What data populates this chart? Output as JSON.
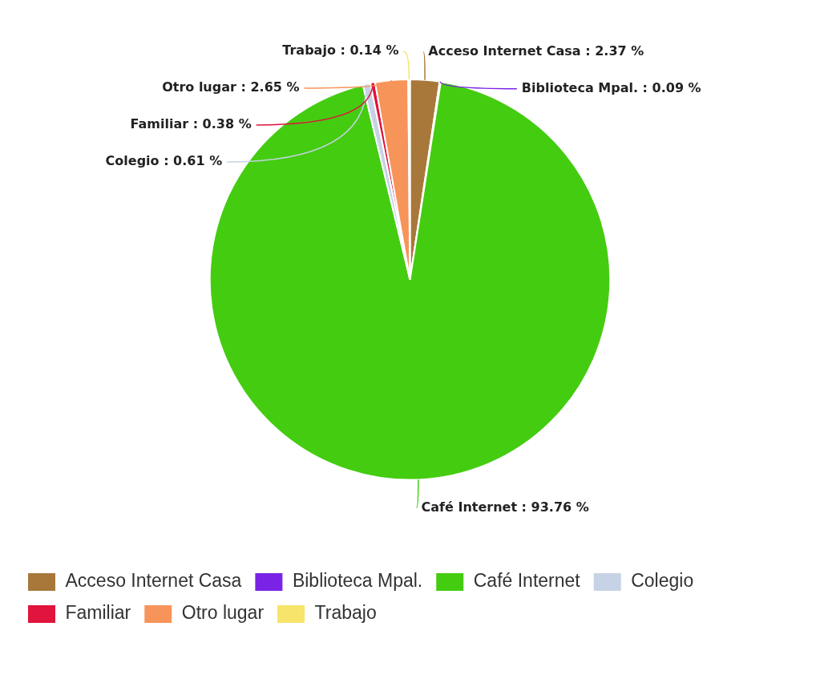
{
  "chart_data": {
    "type": "pie",
    "categories": [
      "Acceso Internet Casa",
      "Biblioteca Mpal.",
      "Café Internet",
      "Colegio",
      "Familiar",
      "Otro lugar",
      "Trabajo"
    ],
    "values": [
      2.37,
      0.09,
      93.76,
      0.61,
      0.38,
      2.65,
      0.14
    ],
    "colors": [
      "#a8773a",
      "#7a22e6",
      "#44cc11",
      "#c6d3e6",
      "#e0143c",
      "#f7945a",
      "#f7e46a"
    ],
    "value_labels": [
      "Acceso Internet Casa : 2.37 %",
      "Biblioteca Mpal. : 0.09 %",
      "Café Internet : 93.76 %",
      "Colegio : 0.61 %",
      "Familiar : 0.38 %",
      "Otro lugar : 2.65 %",
      "Trabajo : 0.14 %"
    ],
    "legend": "bottom left"
  }
}
